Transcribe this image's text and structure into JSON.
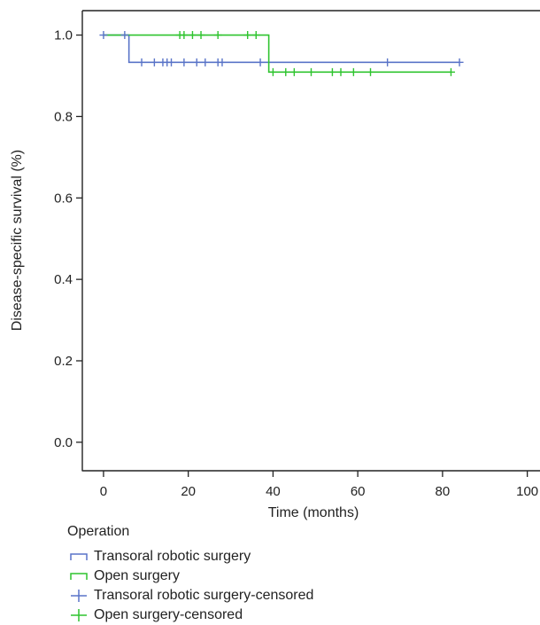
{
  "chart_data": {
    "type": "line",
    "subtype": "kaplan-meier",
    "title": "",
    "xlabel": "Time (months)",
    "ylabel": "Disease-specific survival (%)",
    "xlim": [
      -5,
      103
    ],
    "ylim": [
      -0.07,
      1.06
    ],
    "xticks": [
      0,
      20,
      40,
      60,
      80,
      100
    ],
    "xtick_labels": [
      "0",
      "20",
      "40",
      "60",
      "80",
      "100"
    ],
    "yticks": [
      0.0,
      0.2,
      0.4,
      0.6,
      0.8,
      1.0
    ],
    "ytick_labels": [
      "0.0",
      "0.2",
      "0.4",
      "0.6",
      "0.8",
      "1.0"
    ],
    "grid": false,
    "legend_position": "below",
    "legend_title": "Operation",
    "legend": [
      {
        "label": "Transoral robotic surgery",
        "kind": "step",
        "color": "#5a74c8"
      },
      {
        "label": "Open surgery",
        "kind": "step",
        "color": "#2fc42f"
      },
      {
        "label": "Transoral robotic surgery-censored",
        "kind": "cross",
        "color": "#5a74c8"
      },
      {
        "label": "Open surgery-censored",
        "kind": "cross",
        "color": "#2fc42f"
      }
    ],
    "series": [
      {
        "name": "Transoral robotic surgery",
        "color": "#5a74c8",
        "steps": [
          [
            0,
            1.0
          ],
          [
            6,
            0.933
          ],
          [
            84,
            0.933
          ]
        ],
        "censored": [
          [
            0,
            1.0
          ],
          [
            5,
            1.0
          ],
          [
            9,
            0.933
          ],
          [
            12,
            0.933
          ],
          [
            14,
            0.933
          ],
          [
            15,
            0.933
          ],
          [
            16,
            0.933
          ],
          [
            19,
            0.933
          ],
          [
            22,
            0.933
          ],
          [
            24,
            0.933
          ],
          [
            27,
            0.933
          ],
          [
            28,
            0.933
          ],
          [
            37,
            0.933
          ],
          [
            67,
            0.933
          ],
          [
            84,
            0.933
          ]
        ]
      },
      {
        "name": "Open surgery",
        "color": "#2fc42f",
        "steps": [
          [
            0,
            1.0
          ],
          [
            39,
            0.909
          ],
          [
            82,
            0.909
          ]
        ],
        "censored": [
          [
            18,
            1.0
          ],
          [
            19,
            1.0
          ],
          [
            21,
            1.0
          ],
          [
            23,
            1.0
          ],
          [
            27,
            1.0
          ],
          [
            34,
            1.0
          ],
          [
            36,
            1.0
          ],
          [
            40,
            0.909
          ],
          [
            43,
            0.909
          ],
          [
            45,
            0.909
          ],
          [
            49,
            0.909
          ],
          [
            54,
            0.909
          ],
          [
            56,
            0.909
          ],
          [
            59,
            0.909
          ],
          [
            63,
            0.909
          ],
          [
            82,
            0.909
          ]
        ]
      }
    ]
  }
}
